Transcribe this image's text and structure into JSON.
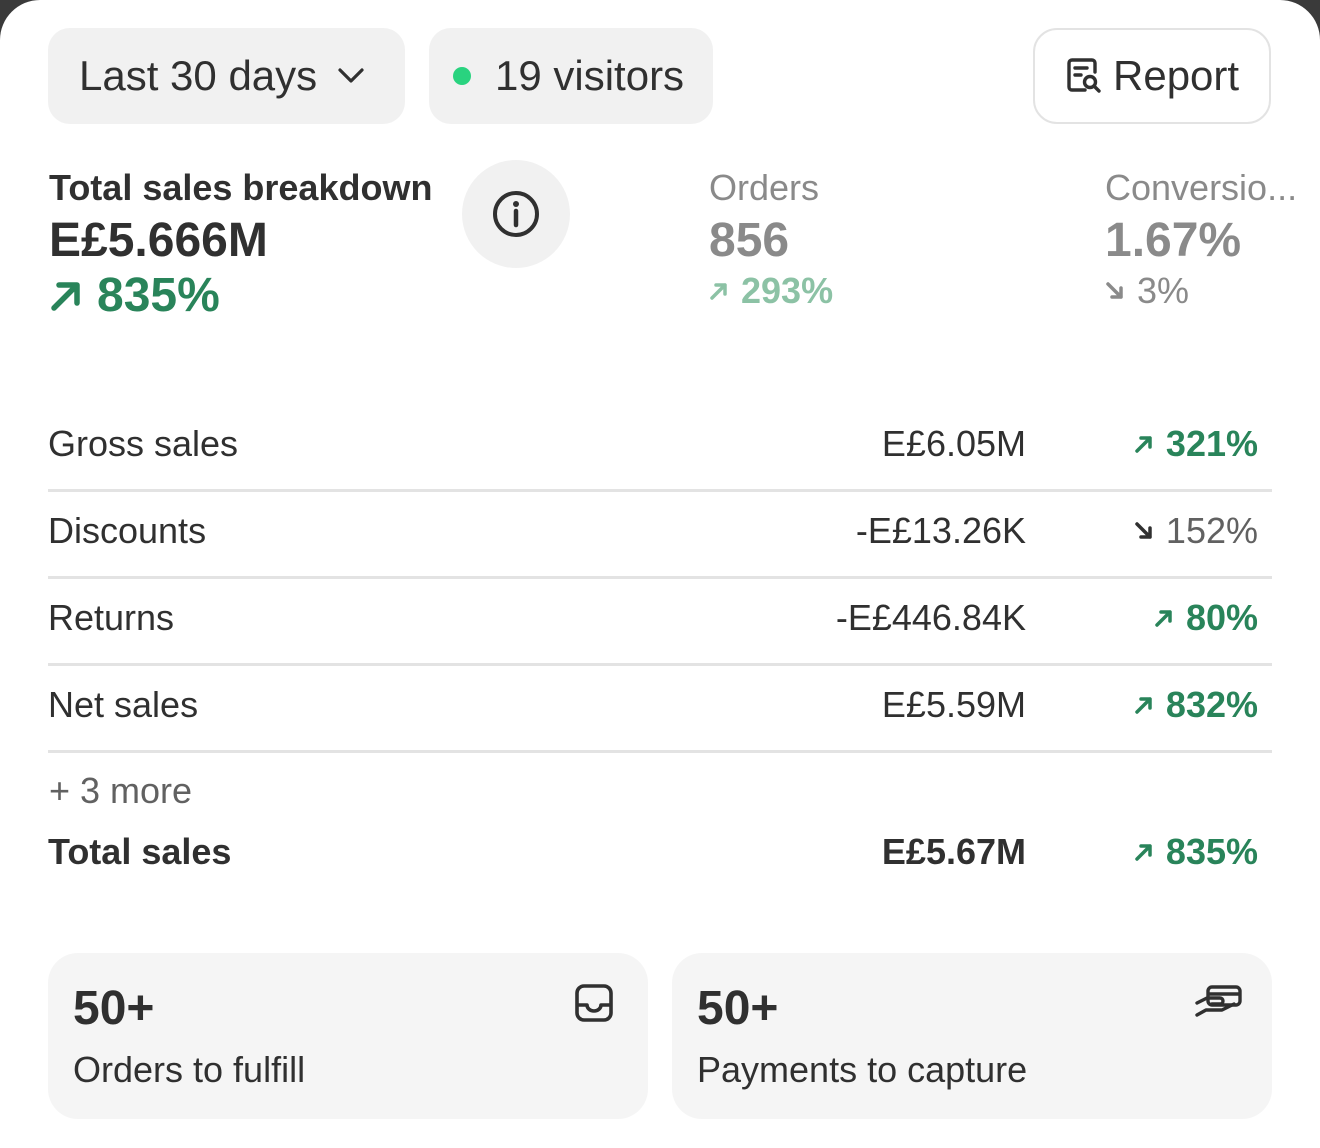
{
  "header": {
    "date_range": "Last 30 days",
    "visitors": "19 visitors",
    "report_label": "Report"
  },
  "metrics": {
    "total_sales": {
      "title": "Total sales breakdown",
      "value": "E£5.666M",
      "change": "835%",
      "direction": "up"
    },
    "orders": {
      "title": "Orders",
      "value": "856",
      "change": "293%",
      "direction": "up"
    },
    "conversion": {
      "title": "Conversio...",
      "value": "1.67%",
      "change": "3%",
      "direction": "down"
    }
  },
  "breakdown": {
    "rows": [
      {
        "label": "Gross sales",
        "value": "E£6.05M",
        "change": "321%",
        "direction": "up"
      },
      {
        "label": "Discounts",
        "value": "-E£13.26K",
        "change": "152%",
        "direction": "down"
      },
      {
        "label": "Returns",
        "value": "-E£446.84K",
        "change": "80%",
        "direction": "up"
      },
      {
        "label": "Net sales",
        "value": "E£5.59M",
        "change": "832%",
        "direction": "up"
      }
    ],
    "more_link": "+ 3 more",
    "total": {
      "label": "Total sales",
      "value": "E£5.67M",
      "change": "835%",
      "direction": "up"
    }
  },
  "tasks": [
    {
      "count": "50+",
      "label": "Orders to fulfill",
      "icon": "inbox-icon"
    },
    {
      "count": "50+",
      "label": "Payments to capture",
      "icon": "payment-hand-icon"
    }
  ],
  "colors": {
    "positive": "#29845a",
    "positive_muted": "#8cc2a5",
    "negative": "#303030",
    "muted_text": "#8a8a8a",
    "live_dot": "#29d37f"
  }
}
